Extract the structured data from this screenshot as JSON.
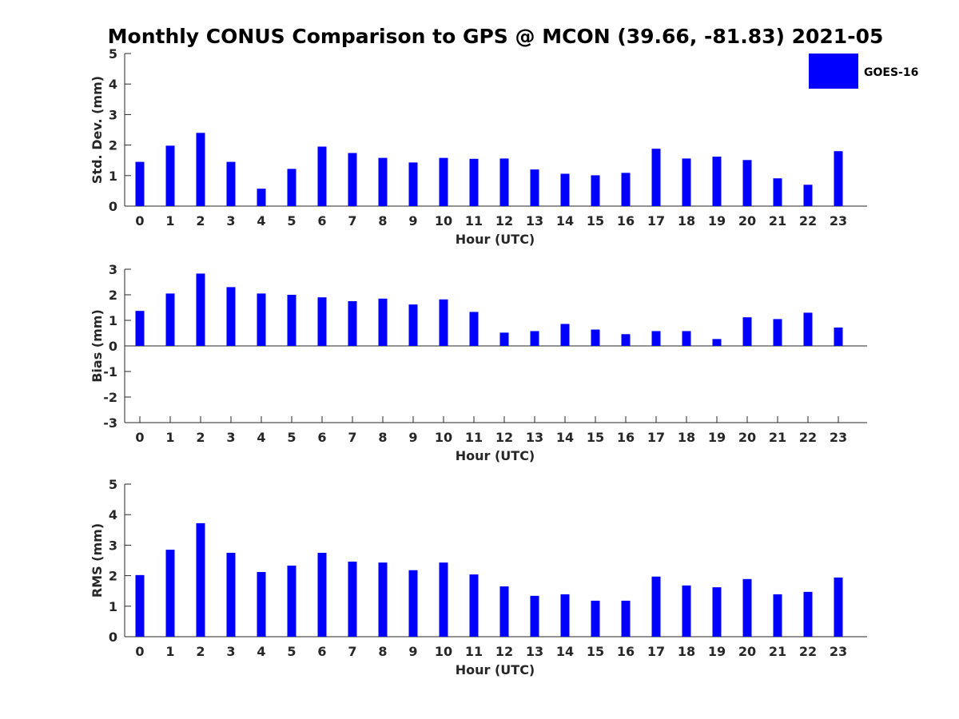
{
  "title": "Monthly CONUS Comparison to GPS @ MCON (39.66, -81.83) 2021-05",
  "legend": {
    "label": "GOES-16",
    "color": "#0000ff",
    "placement": "top-right"
  },
  "chart_data": [
    {
      "type": "bar",
      "xlabel": "Hour (UTC)",
      "ylabel": "Std. Dev. (mm)",
      "ylim": [
        0,
        5
      ],
      "yticks": [
        "0",
        "1",
        "2",
        "3",
        "4",
        "5"
      ],
      "ytick_values": [
        0,
        1,
        2,
        3,
        4,
        5
      ],
      "categories": [
        "0",
        "1",
        "2",
        "3",
        "4",
        "5",
        "6",
        "7",
        "8",
        "9",
        "10",
        "11",
        "12",
        "13",
        "14",
        "15",
        "16",
        "17",
        "18",
        "19",
        "20",
        "21",
        "22",
        "23"
      ],
      "series": [
        {
          "name": "GOES-16",
          "values": [
            1.45,
            1.98,
            2.4,
            1.45,
            0.57,
            1.22,
            1.95,
            1.74,
            1.58,
            1.43,
            1.58,
            1.55,
            1.56,
            1.2,
            1.06,
            1.01,
            1.09,
            1.88,
            1.56,
            1.62,
            1.51,
            0.91,
            0.7,
            1.8
          ]
        }
      ],
      "grid": false
    },
    {
      "type": "bar",
      "xlabel": "Hour (UTC)",
      "ylabel": "Bias (mm)",
      "ylim": [
        -3,
        3
      ],
      "yticks": [
        "-3",
        "-2",
        "-1",
        "0",
        "1",
        "2",
        "3"
      ],
      "ytick_values": [
        -3,
        -2,
        -1,
        0,
        1,
        2,
        3
      ],
      "categories": [
        "0",
        "1",
        "2",
        "3",
        "4",
        "5",
        "6",
        "7",
        "8",
        "9",
        "10",
        "11",
        "12",
        "13",
        "14",
        "15",
        "16",
        "17",
        "18",
        "19",
        "20",
        "21",
        "22",
        "23"
      ],
      "series": [
        {
          "name": "GOES-16",
          "values": [
            1.37,
            2.05,
            2.83,
            2.3,
            2.05,
            2.0,
            1.9,
            1.75,
            1.85,
            1.62,
            1.82,
            1.33,
            0.52,
            0.58,
            0.86,
            0.64,
            0.46,
            0.58,
            0.58,
            0.27,
            1.12,
            1.05,
            1.3,
            0.72
          ]
        }
      ],
      "grid": false
    },
    {
      "type": "bar",
      "xlabel": "Hour (UTC)",
      "ylabel": "RMS (mm)",
      "ylim": [
        0,
        5
      ],
      "yticks": [
        "0",
        "1",
        "2",
        "3",
        "4",
        "5"
      ],
      "ytick_values": [
        0,
        1,
        2,
        3,
        4,
        5
      ],
      "categories": [
        "0",
        "1",
        "2",
        "3",
        "4",
        "5",
        "6",
        "7",
        "8",
        "9",
        "10",
        "11",
        "12",
        "13",
        "14",
        "15",
        "16",
        "17",
        "18",
        "19",
        "20",
        "21",
        "22",
        "23"
      ],
      "series": [
        {
          "name": "GOES-16",
          "values": [
            2.02,
            2.85,
            3.72,
            2.75,
            2.12,
            2.33,
            2.75,
            2.46,
            2.43,
            2.18,
            2.43,
            2.04,
            1.65,
            1.34,
            1.39,
            1.18,
            1.18,
            1.97,
            1.68,
            1.62,
            1.89,
            1.39,
            1.47,
            1.94
          ]
        }
      ],
      "grid": false
    }
  ]
}
